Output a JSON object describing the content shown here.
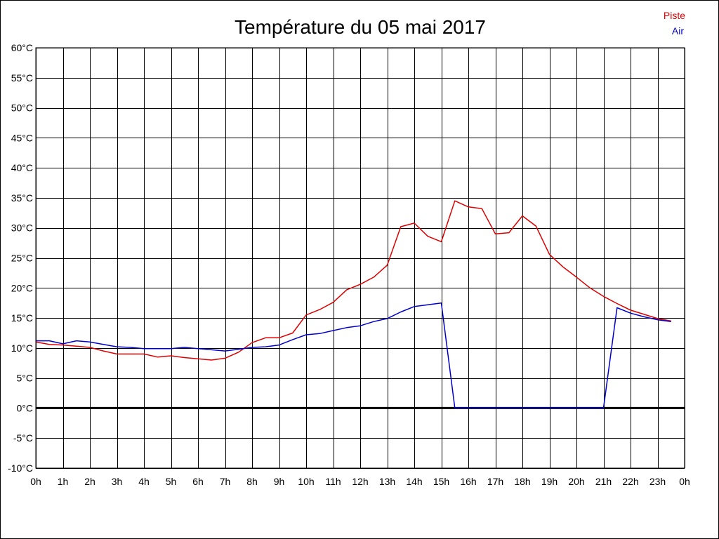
{
  "chart_data": {
    "type": "line",
    "title": "Température du 05 mai 2017",
    "xlabel": "",
    "ylabel": "",
    "x_tick_labels": [
      "0h",
      "1h",
      "2h",
      "3h",
      "4h",
      "5h",
      "6h",
      "7h",
      "8h",
      "9h",
      "10h",
      "11h",
      "12h",
      "13h",
      "14h",
      "15h",
      "16h",
      "17h",
      "18h",
      "19h",
      "20h",
      "21h",
      "22h",
      "23h",
      "0h"
    ],
    "y_tick_labels": [
      "60°C",
      "55°C",
      "50°C",
      "45°C",
      "40°C",
      "35°C",
      "30°C",
      "25°C",
      "20°C",
      "15°C",
      "10°C",
      "5°C",
      "0°C",
      "-5°C",
      "-10°C"
    ],
    "xlim": [
      0,
      24
    ],
    "ylim": [
      -10,
      60
    ],
    "grid": true,
    "legend_position": "top-right",
    "series": [
      {
        "name": "Piste",
        "color": "#dd0000",
        "x": [
          0,
          0.5,
          1,
          1.5,
          2,
          2.5,
          3,
          3.5,
          4,
          4.5,
          5,
          5.5,
          6,
          6.5,
          7,
          7.5,
          8,
          8.5,
          9,
          9.5,
          10,
          10.5,
          11,
          11.5,
          12,
          12.5,
          13,
          13.5,
          14,
          14.5,
          15,
          15.5,
          16,
          16.5,
          17,
          17.5,
          18,
          18.5,
          19,
          19.5,
          20,
          20.5,
          21,
          21.5,
          22,
          22.5,
          23,
          23.5
        ],
        "values": [
          11.0,
          10.6,
          10.5,
          10.3,
          10.1,
          9.5,
          9.0,
          9.0,
          9.0,
          8.5,
          8.7,
          8.4,
          8.2,
          8.0,
          8.3,
          9.3,
          10.9,
          11.7,
          11.7,
          12.5,
          15.5,
          16.4,
          17.6,
          19.7,
          20.6,
          21.8,
          23.8,
          30.2,
          30.8,
          28.6,
          27.7,
          34.5,
          33.5,
          33.2,
          29.0,
          29.2,
          32.0,
          30.3,
          25.6,
          23.5,
          21.8,
          20.0,
          18.6,
          17.4,
          16.3,
          15.6,
          14.9,
          14.5
        ]
      },
      {
        "name": "Air",
        "color": "#0000cc",
        "x": [
          0,
          0.5,
          1,
          1.5,
          2,
          2.5,
          3,
          3.5,
          4,
          4.5,
          5,
          5.5,
          6,
          6.5,
          7,
          7.5,
          8,
          8.5,
          9,
          9.5,
          10,
          10.5,
          11,
          11.5,
          12,
          12.5,
          13,
          13.5,
          14,
          14.5,
          15,
          15.5,
          16,
          16.5,
          17,
          17.5,
          18,
          18.5,
          19,
          19.5,
          20,
          20.5,
          21,
          21.5,
          22,
          22.5,
          23,
          23.5
        ],
        "values": [
          11.2,
          11.2,
          10.7,
          11.2,
          11.0,
          10.6,
          10.2,
          10.1,
          9.9,
          9.9,
          9.9,
          10.1,
          9.9,
          9.7,
          9.5,
          9.8,
          10.1,
          10.2,
          10.5,
          11.4,
          12.2,
          12.4,
          12.9,
          13.4,
          13.7,
          14.4,
          14.9,
          16.0,
          16.9,
          17.2,
          17.5,
          0,
          0,
          0,
          0,
          0,
          0,
          0,
          0,
          0,
          0,
          0,
          0,
          16.7,
          15.8,
          15.2,
          14.7,
          14.4
        ]
      }
    ]
  }
}
